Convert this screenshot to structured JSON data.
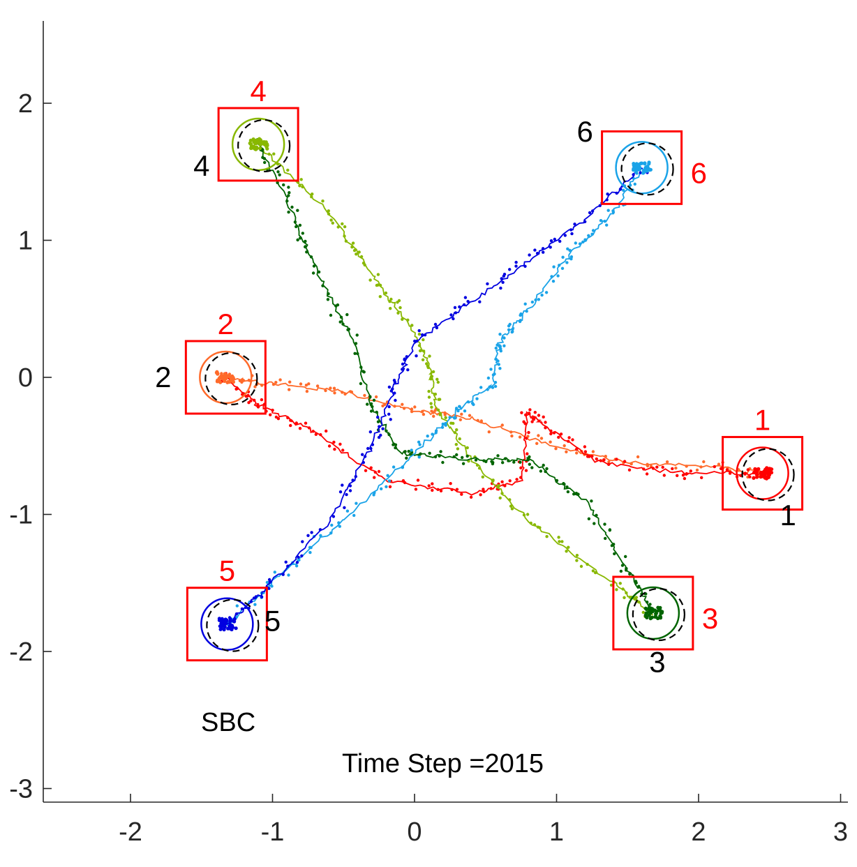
{
  "chart_data": {
    "type": "scatter",
    "xlim": [
      -2.6,
      3.1
    ],
    "ylim": [
      -3.1,
      2.6
    ],
    "x_ticks": [
      -2,
      -1,
      0,
      1,
      2,
      3
    ],
    "y_ticks": [
      2,
      1,
      0,
      -1,
      -2,
      -3
    ],
    "x_tick_labels": [
      "-2",
      "-1",
      "0",
      "1",
      "2",
      "3"
    ],
    "y_tick_labels": [
      "2",
      "1",
      "0",
      "-1",
      "-2",
      "-3"
    ],
    "grid": false,
    "method_label": "SBC",
    "time_step_label": "Time Step =2015",
    "colors": {
      "target_box": "#ff0000",
      "target_number": "#ff0000",
      "start_number": "#000000",
      "dashed_circle": "#000000"
    },
    "series": [
      {
        "color": "#ff6a2a",
        "start": [
          2.45,
          -0.7
        ],
        "target": [
          -1.33,
          0.0
        ],
        "waypoints": [
          [
            2.45,
            -0.7
          ],
          [
            2.1,
            -0.65
          ],
          [
            1.5,
            -0.62
          ],
          [
            0.9,
            -0.48
          ],
          [
            0.4,
            -0.3
          ],
          [
            0.0,
            -0.24
          ],
          [
            -0.5,
            -0.1
          ],
          [
            -1.0,
            -0.05
          ],
          [
            -1.33,
            0.0
          ]
        ]
      },
      {
        "color": "#ff0000",
        "start": [
          -1.33,
          0.0
        ],
        "target": [
          2.45,
          -0.7
        ],
        "waypoints": [
          [
            -1.33,
            0.0
          ],
          [
            -1.1,
            -0.2
          ],
          [
            -0.7,
            -0.4
          ],
          [
            -0.2,
            -0.75
          ],
          [
            0.4,
            -0.85
          ],
          [
            0.75,
            -0.75
          ],
          [
            0.8,
            -0.25
          ],
          [
            0.9,
            -0.35
          ],
          [
            1.3,
            -0.62
          ],
          [
            1.9,
            -0.7
          ],
          [
            2.45,
            -0.7
          ]
        ]
      },
      {
        "color": "#88b800",
        "start": [
          1.68,
          -1.72
        ],
        "target": [
          -1.1,
          1.7
        ],
        "waypoints": [
          [
            1.68,
            -1.72
          ],
          [
            1.4,
            -1.5
          ],
          [
            0.8,
            -1.05
          ],
          [
            0.4,
            -0.6
          ],
          [
            0.15,
            -0.2
          ],
          [
            0.1,
            0.1
          ],
          [
            -0.05,
            0.4
          ],
          [
            -0.3,
            0.75
          ],
          [
            -0.6,
            1.2
          ],
          [
            -1.1,
            1.7
          ]
        ]
      },
      {
        "color": "#006400",
        "start": [
          -1.1,
          1.7
        ],
        "target": [
          1.68,
          -1.72
        ],
        "waypoints": [
          [
            -1.1,
            1.7
          ],
          [
            -0.9,
            1.3
          ],
          [
            -0.7,
            0.8
          ],
          [
            -0.45,
            0.3
          ],
          [
            -0.3,
            -0.2
          ],
          [
            -0.1,
            -0.55
          ],
          [
            0.4,
            -0.6
          ],
          [
            0.8,
            -0.6
          ],
          [
            1.2,
            -0.9
          ],
          [
            1.5,
            -1.4
          ],
          [
            1.68,
            -1.72
          ]
        ]
      },
      {
        "color": "#1aa3e8",
        "start": [
          -1.32,
          -1.8
        ],
        "target": [
          1.6,
          1.53
        ],
        "waypoints": [
          [
            -1.32,
            -1.8
          ],
          [
            -0.9,
            -1.4
          ],
          [
            -0.4,
            -0.95
          ],
          [
            0.0,
            -0.55
          ],
          [
            0.3,
            -0.25
          ],
          [
            0.55,
            -0.05
          ],
          [
            0.6,
            0.25
          ],
          [
            0.8,
            0.5
          ],
          [
            1.1,
            0.9
          ],
          [
            1.4,
            1.2
          ],
          [
            1.6,
            1.53
          ]
        ]
      },
      {
        "color": "#0000e0",
        "start": [
          1.6,
          1.53
        ],
        "target": [
          -1.32,
          -1.8
        ],
        "waypoints": [
          [
            1.6,
            1.53
          ],
          [
            1.2,
            1.15
          ],
          [
            0.8,
            0.85
          ],
          [
            0.4,
            0.55
          ],
          [
            0.0,
            0.25
          ],
          [
            -0.15,
            -0.1
          ],
          [
            -0.3,
            -0.5
          ],
          [
            -0.6,
            -1.05
          ],
          [
            -1.0,
            -1.5
          ],
          [
            -1.32,
            -1.8
          ]
        ]
      }
    ],
    "target_boxes": [
      {
        "label": "1",
        "center": [
          2.45,
          -0.7
        ],
        "label_side": "top"
      },
      {
        "label": "2",
        "center": [
          -1.33,
          0.0
        ],
        "label_side": "top"
      },
      {
        "label": "3",
        "center": [
          1.68,
          -1.72
        ],
        "label_side": "right"
      },
      {
        "label": "4",
        "center": [
          -1.1,
          1.7
        ],
        "label_side": "top"
      },
      {
        "label": "5",
        "center": [
          -1.32,
          -1.8
        ],
        "label_side": "top"
      },
      {
        "label": "6",
        "center": [
          1.6,
          1.53
        ],
        "label_side": "right"
      }
    ],
    "start_labels": [
      {
        "label": "1",
        "at": [
          2.63,
          -1.08
        ]
      },
      {
        "label": "2",
        "at": [
          -1.77,
          -0.07
        ]
      },
      {
        "label": "3",
        "at": [
          1.71,
          -2.15
        ]
      },
      {
        "label": "4",
        "at": [
          -1.5,
          1.47
        ]
      },
      {
        "label": "5",
        "at": [
          -1.0,
          -1.85
        ]
      },
      {
        "label": "6",
        "at": [
          1.2,
          1.72
        ]
      }
    ]
  }
}
